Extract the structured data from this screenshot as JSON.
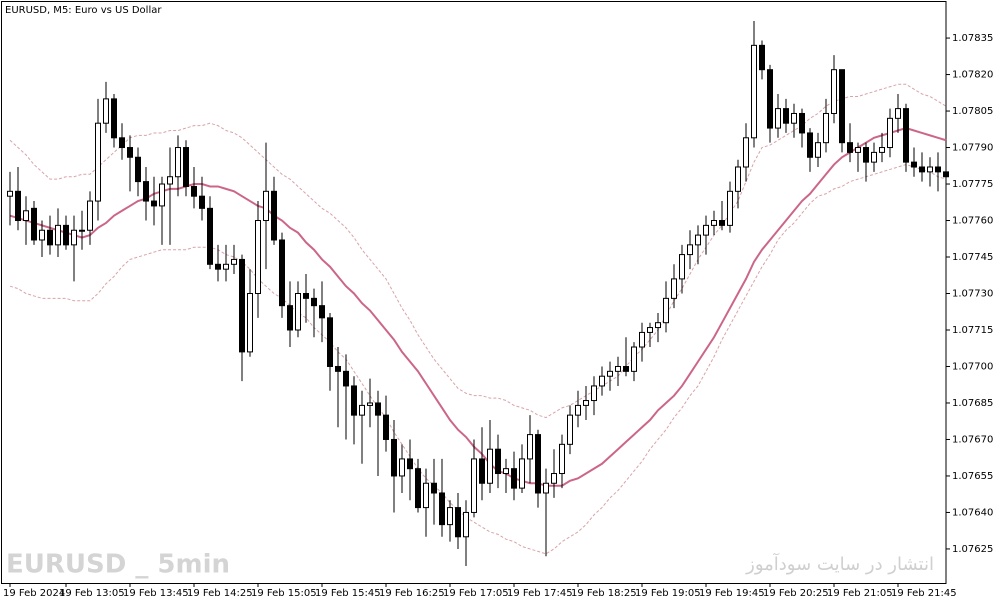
{
  "chart_data": {
    "type": "candlestick",
    "title": "EURUSD, M5:  Euro vs US Dollar",
    "annotations": [
      "EURUSD _ 5min",
      "انتشار در سایت سودآموز"
    ],
    "categories": [
      "19 Feb 2024",
      null,
      null,
      null,
      null,
      null,
      null,
      "19 Feb 13:05",
      null,
      null,
      null,
      null,
      null,
      null,
      null,
      "19 Feb 13:45",
      null,
      null,
      null,
      null,
      null,
      null,
      null,
      "19 Feb 14:25",
      null,
      null,
      null,
      null,
      null,
      null,
      null,
      "19 Feb 15:05",
      null,
      null,
      null,
      null,
      null,
      null,
      null,
      "19 Feb 15:45",
      null,
      null,
      null,
      null,
      null,
      null,
      null,
      "19 Feb 16:25",
      null,
      null,
      null,
      null,
      null,
      null,
      null,
      "19 Feb 17:05",
      null,
      null,
      null,
      null,
      null,
      null,
      null,
      "19 Feb 17:45",
      null,
      null,
      null,
      null,
      null,
      null,
      null,
      "19 Feb 18:25",
      null,
      null,
      null,
      null,
      null,
      null,
      null,
      "19 Feb 19:05",
      null,
      null,
      null,
      null,
      null,
      null,
      null,
      "19 Feb 19:45",
      null,
      null,
      null,
      null,
      null,
      null,
      null,
      "19 Feb 20:25",
      null,
      null,
      null,
      null,
      null,
      null,
      null,
      "19 Feb 21:05",
      null,
      null,
      null,
      null,
      null,
      null,
      null,
      "19 Feb 21:45",
      null,
      null,
      null,
      null,
      null,
      null
    ],
    "open": [
      1.0777,
      1.07772,
      1.0776,
      1.07765,
      1.07752,
      1.07756,
      1.0775,
      1.07758,
      1.0775,
      1.07756,
      1.07756,
      1.07768,
      1.078,
      1.0781,
      1.07794,
      1.0779,
      1.07786,
      1.07776,
      1.07768,
      1.07766,
      1.07775,
      1.07778,
      1.0779,
      1.07774,
      1.0777,
      1.07765,
      1.07742,
      1.0774,
      1.07742,
      1.07744,
      1.07706,
      1.0773,
      1.0776,
      1.07772,
      1.07752,
      1.07725,
      1.07715,
      1.0773,
      1.07728,
      1.07725,
      1.0772,
      1.077,
      1.07698,
      1.07692,
      1.0768,
      1.07684,
      1.07685,
      1.0768,
      1.0767,
      1.07655,
      1.07662,
      1.07658,
      1.07642,
      1.07652,
      1.07648,
      1.07635,
      1.07642,
      1.0763,
      1.0764,
      1.07662,
      1.07652,
      1.07666,
      1.07656,
      1.07658,
      1.0765,
      1.07662,
      1.07672,
      1.07648,
      1.07652,
      1.07656,
      1.07668,
      1.0768,
      1.07684,
      1.07686,
      1.07692,
      1.07696,
      1.07698,
      1.077,
      1.07698,
      1.07708,
      1.07714,
      1.07716,
      1.07718,
      1.07728,
      1.07736,
      1.07746,
      1.0775,
      1.07754,
      1.07758,
      1.0776,
      1.07758,
      1.07772,
      1.07782,
      1.07794,
      1.07832,
      1.07822,
      1.07798,
      1.07806,
      1.078,
      1.07804,
      1.07796,
      1.07786,
      1.07792,
      1.07804,
      1.07822,
      1.07792,
      1.07788,
      1.0779,
      1.07784,
      1.07788,
      1.0779,
      1.07802,
      1.07806,
      1.07784,
      1.07782,
      1.0778,
      1.07782,
      1.0778
    ],
    "high": [
      1.0778,
      1.07782,
      1.0777,
      1.07768,
      1.0776,
      1.07762,
      1.07765,
      1.07762,
      1.07762,
      1.07764,
      1.07772,
      1.0781,
      1.07817,
      1.07812,
      1.078,
      1.07795,
      1.0779,
      1.07782,
      1.07778,
      1.07778,
      1.0779,
      1.07795,
      1.07793,
      1.07782,
      1.07778,
      1.0777,
      1.0775,
      1.0775,
      1.0775,
      1.07746,
      1.0774,
      1.07768,
      1.07792,
      1.07778,
      1.07755,
      1.07735,
      1.07735,
      1.07738,
      1.07732,
      1.07735,
      1.07722,
      1.07708,
      1.07705,
      1.07696,
      1.0769,
      1.07695,
      1.0769,
      1.07688,
      1.07678,
      1.07668,
      1.0767,
      1.07662,
      1.07658,
      1.07662,
      1.07662,
      1.07645,
      1.07648,
      1.07645,
      1.0767,
      1.07675,
      1.07678,
      1.07672,
      1.07662,
      1.07665,
      1.07668,
      1.0768,
      1.07674,
      1.07658,
      1.07666,
      1.07672,
      1.07684,
      1.0769,
      1.07692,
      1.07696,
      1.077,
      1.07702,
      1.07704,
      1.07712,
      1.0771,
      1.07718,
      1.07718,
      1.07722,
      1.07735,
      1.07742,
      1.0775,
      1.07756,
      1.07758,
      1.07762,
      1.07764,
      1.07768,
      1.07776,
      1.07785,
      1.078,
      1.07842,
      1.07834,
      1.07824,
      1.07812,
      1.0781,
      1.07808,
      1.07806,
      1.07798,
      1.07796,
      1.0781,
      1.07828,
      1.07822,
      1.078,
      1.07792,
      1.07792,
      1.07792,
      1.07796,
      1.07806,
      1.07812,
      1.07808,
      1.0779,
      1.07788,
      1.07786,
      1.07788,
      1.07784
    ],
    "low": [
      1.07758,
      1.07756,
      1.0775,
      1.0775,
      1.07745,
      1.07746,
      1.07745,
      1.07748,
      1.07735,
      1.07748,
      1.0775,
      1.0776,
      1.07796,
      1.0779,
      1.07785,
      1.07772,
      1.0777,
      1.0776,
      1.07758,
      1.0775,
      1.0775,
      1.0777,
      1.0777,
      1.07765,
      1.0776,
      1.0774,
      1.07735,
      1.07735,
      1.07738,
      1.07694,
      1.07704,
      1.0772,
      1.0774,
      1.0775,
      1.0772,
      1.07708,
      1.07712,
      1.07718,
      1.07712,
      1.0771,
      1.0769,
      1.07675,
      1.0767,
      1.07668,
      1.0766,
      1.07675,
      1.07655,
      1.07665,
      1.0764,
      1.07648,
      1.07645,
      1.0764,
      1.0763,
      1.07635,
      1.0763,
      1.07628,
      1.07625,
      1.07618,
      1.07638,
      1.07645,
      1.07648,
      1.0765,
      1.07648,
      1.07645,
      1.07648,
      1.07652,
      1.07642,
      1.07622,
      1.07646,
      1.0765,
      1.07664,
      1.07675,
      1.07678,
      1.0768,
      1.07688,
      1.0769,
      1.07692,
      1.07696,
      1.07694,
      1.07702,
      1.07708,
      1.0771,
      1.07714,
      1.07724,
      1.0773,
      1.0774,
      1.07742,
      1.07746,
      1.07754,
      1.07756,
      1.07755,
      1.07765,
      1.07776,
      1.0779,
      1.07818,
      1.07792,
      1.07794,
      1.07796,
      1.07794,
      1.0779,
      1.0778,
      1.07782,
      1.07788,
      1.078,
      1.07788,
      1.07784,
      1.0778,
      1.07776,
      1.0778,
      1.07784,
      1.07786,
      1.07796,
      1.0778,
      1.07778,
      1.07776,
      1.07774,
      1.07772,
      1.07774
    ],
    "close": [
      1.07772,
      1.0776,
      1.07764,
      1.07752,
      1.07756,
      1.0775,
      1.07758,
      1.0775,
      1.07756,
      1.07756,
      1.07768,
      1.078,
      1.0781,
      1.07794,
      1.0779,
      1.07786,
      1.07776,
      1.07768,
      1.07766,
      1.07775,
      1.07778,
      1.0779,
      1.07774,
      1.0777,
      1.07765,
      1.07742,
      1.0774,
      1.07742,
      1.07744,
      1.07706,
      1.0773,
      1.0776,
      1.07772,
      1.07752,
      1.07725,
      1.07715,
      1.0773,
      1.07728,
      1.07725,
      1.0772,
      1.077,
      1.07698,
      1.07692,
      1.0768,
      1.07684,
      1.07685,
      1.0768,
      1.0767,
      1.07655,
      1.07662,
      1.07658,
      1.07642,
      1.07652,
      1.07648,
      1.07635,
      1.07642,
      1.0763,
      1.0764,
      1.07662,
      1.07652,
      1.07666,
      1.07656,
      1.07658,
      1.0765,
      1.07662,
      1.07672,
      1.07648,
      1.07652,
      1.07656,
      1.07668,
      1.0768,
      1.07684,
      1.07686,
      1.07692,
      1.07696,
      1.07698,
      1.077,
      1.07698,
      1.07708,
      1.07714,
      1.07716,
      1.07718,
      1.07728,
      1.07736,
      1.07746,
      1.0775,
      1.07754,
      1.07758,
      1.0776,
      1.07758,
      1.07772,
      1.07782,
      1.07794,
      1.07832,
      1.07822,
      1.07798,
      1.07806,
      1.078,
      1.07804,
      1.07796,
      1.07786,
      1.07792,
      1.07804,
      1.07822,
      1.07792,
      1.07788,
      1.0779,
      1.07784,
      1.07788,
      1.0779,
      1.07802,
      1.07806,
      1.07784,
      1.07782,
      1.0778,
      1.07782,
      1.0778,
      1.07778
    ],
    "up_color": "#ffffff",
    "down_color": "#000000",
    "wick_color": "#000000",
    "lines": [
      {
        "color": "#d9a3a8",
        "dashed": true,
        "values": [
          1.07793,
          1.0779,
          1.07787,
          1.07783,
          1.0778,
          1.07777,
          1.07777,
          1.07778,
          1.07778,
          1.07779,
          1.07779,
          1.07782,
          1.07785,
          1.07788,
          1.07791,
          1.07794,
          1.07795,
          1.07795,
          1.07796,
          1.07796,
          1.07797,
          1.07797,
          1.07798,
          1.07799,
          1.07799,
          1.078,
          1.07799,
          1.07797,
          1.07796,
          1.07794,
          1.07791,
          1.07788,
          1.07785,
          1.07782,
          1.07779,
          1.07777,
          1.07774,
          1.07771,
          1.07768,
          1.07765,
          1.07763,
          1.0776,
          1.07757,
          1.07753,
          1.07748,
          1.07744,
          1.0774,
          1.07736,
          1.0773,
          1.07724,
          1.07719,
          1.07713,
          1.07708,
          1.07703,
          1.07699,
          1.07695,
          1.07691,
          1.07689,
          1.07688,
          1.07688,
          1.07687,
          1.07687,
          1.07686,
          1.07684,
          1.07683,
          1.07682,
          1.0768,
          1.07679,
          1.07681,
          1.07683,
          1.07684,
          1.07686,
          1.07688,
          1.0769,
          1.07692,
          1.07694,
          1.07696,
          1.077,
          1.07704,
          1.07707,
          1.07711,
          1.07715,
          1.07721,
          1.07727,
          1.07732,
          1.07738,
          1.07744,
          1.07749,
          1.07754,
          1.07758,
          1.07763,
          1.07768,
          1.07776,
          1.07784,
          1.0779,
          1.07791,
          1.07793,
          1.07795,
          1.07797,
          1.07799,
          1.07802,
          1.07804,
          1.07807,
          1.07809,
          1.0781,
          1.07811,
          1.07811,
          1.07812,
          1.07813,
          1.07814,
          1.07815,
          1.07816,
          1.07816,
          1.07814,
          1.07812,
          1.07811,
          1.07809,
          1.07807
        ]
      },
      {
        "color": "#d9a3a8",
        "dashed": true,
        "values": [
          1.07733,
          1.07732,
          1.0773,
          1.07729,
          1.07728,
          1.07728,
          1.07728,
          1.07728,
          1.07727,
          1.07727,
          1.07727,
          1.0773,
          1.07734,
          1.07737,
          1.07741,
          1.07744,
          1.07745,
          1.07746,
          1.07747,
          1.07748,
          1.07748,
          1.07748,
          1.07748,
          1.07749,
          1.07749,
          1.07749,
          1.07748,
          1.07746,
          1.07745,
          1.07743,
          1.0774,
          1.07736,
          1.07733,
          1.0773,
          1.07728,
          1.07725,
          1.07722,
          1.0772,
          1.07716,
          1.07713,
          1.0771,
          1.07706,
          1.07703,
          1.07698,
          1.07693,
          1.07688,
          1.07683,
          1.07679,
          1.07673,
          1.07668,
          1.07663,
          1.07658,
          1.07654,
          1.07651,
          1.07648,
          1.07644,
          1.07641,
          1.07638,
          1.07636,
          1.07634,
          1.07632,
          1.07631,
          1.07629,
          1.07628,
          1.07626,
          1.07625,
          1.07624,
          1.07623,
          1.07625,
          1.07628,
          1.0763,
          1.07632,
          1.07635,
          1.07639,
          1.07642,
          1.07646,
          1.07649,
          1.07653,
          1.07657,
          1.07661,
          1.07666,
          1.0767,
          1.07674,
          1.07679,
          1.07683,
          1.07688,
          1.07692,
          1.07698,
          1.07704,
          1.07711,
          1.07717,
          1.07723,
          1.07729,
          1.07735,
          1.07741,
          1.07746,
          1.07752,
          1.07756,
          1.07759,
          1.07763,
          1.07767,
          1.0777,
          1.07771,
          1.07773,
          1.07774,
          1.07776,
          1.07777,
          1.07778,
          1.07779,
          1.0778,
          1.07781,
          1.07782,
          1.07783,
          1.07782,
          1.07781,
          1.0778,
          1.07778,
          1.07777
        ]
      },
      {
        "color": "#cc6688",
        "dashed": false,
        "values": [
          1.07762,
          1.07761,
          1.0776,
          1.07759,
          1.07758,
          1.07757,
          1.07756,
          1.07755,
          1.07754,
          1.07753,
          1.07754,
          1.07757,
          1.07759,
          1.07762,
          1.07764,
          1.07766,
          1.07768,
          1.07769,
          1.07771,
          1.07772,
          1.07773,
          1.07773,
          1.07774,
          1.07775,
          1.07775,
          1.07774,
          1.07774,
          1.07773,
          1.07772,
          1.0777,
          1.07768,
          1.07766,
          1.07765,
          1.07762,
          1.0776,
          1.07757,
          1.07755,
          1.07751,
          1.07748,
          1.07744,
          1.07741,
          1.07737,
          1.07733,
          1.0773,
          1.07726,
          1.07723,
          1.07719,
          1.07715,
          1.07711,
          1.07706,
          1.07702,
          1.07698,
          1.07693,
          1.07688,
          1.07683,
          1.07678,
          1.07674,
          1.07671,
          1.07667,
          1.07664,
          1.0766,
          1.07657,
          1.07656,
          1.07654,
          1.07653,
          1.07652,
          1.07652,
          1.07651,
          1.07651,
          1.07651,
          1.07653,
          1.07654,
          1.07656,
          1.07658,
          1.0766,
          1.07663,
          1.07666,
          1.07669,
          1.07672,
          1.07675,
          1.07678,
          1.07682,
          1.07685,
          1.07688,
          1.07692,
          1.07697,
          1.07702,
          1.07707,
          1.07712,
          1.07718,
          1.07724,
          1.0773,
          1.07736,
          1.07743,
          1.07748,
          1.07752,
          1.07756,
          1.0776,
          1.07764,
          1.07768,
          1.07771,
          1.07775,
          1.07779,
          1.07783,
          1.07786,
          1.07788,
          1.0779,
          1.07792,
          1.07794,
          1.07795,
          1.07796,
          1.07797,
          1.07798,
          1.07797,
          1.07796,
          1.07795,
          1.07794,
          1.07793
        ]
      }
    ],
    "ylim": [
      1.07611,
      1.07849
    ],
    "yticks": [
      1.07835,
      {
        "value": 1.0782,
        "label": "1.07820"
      },
      1.07805,
      {
        "value": 1.0779,
        "label": "1.07790"
      },
      1.07775,
      {
        "value": 1.0776,
        "label": "1.07760"
      },
      1.07745,
      {
        "value": 1.0773,
        "label": "1.07730"
      },
      1.07715,
      {
        "value": 1.077,
        "label": "1.07700"
      },
      1.07685,
      {
        "value": 1.0767,
        "label": "1.07670"
      },
      1.07655,
      {
        "value": 1.0764,
        "label": "1.07640"
      },
      1.07625
    ]
  }
}
